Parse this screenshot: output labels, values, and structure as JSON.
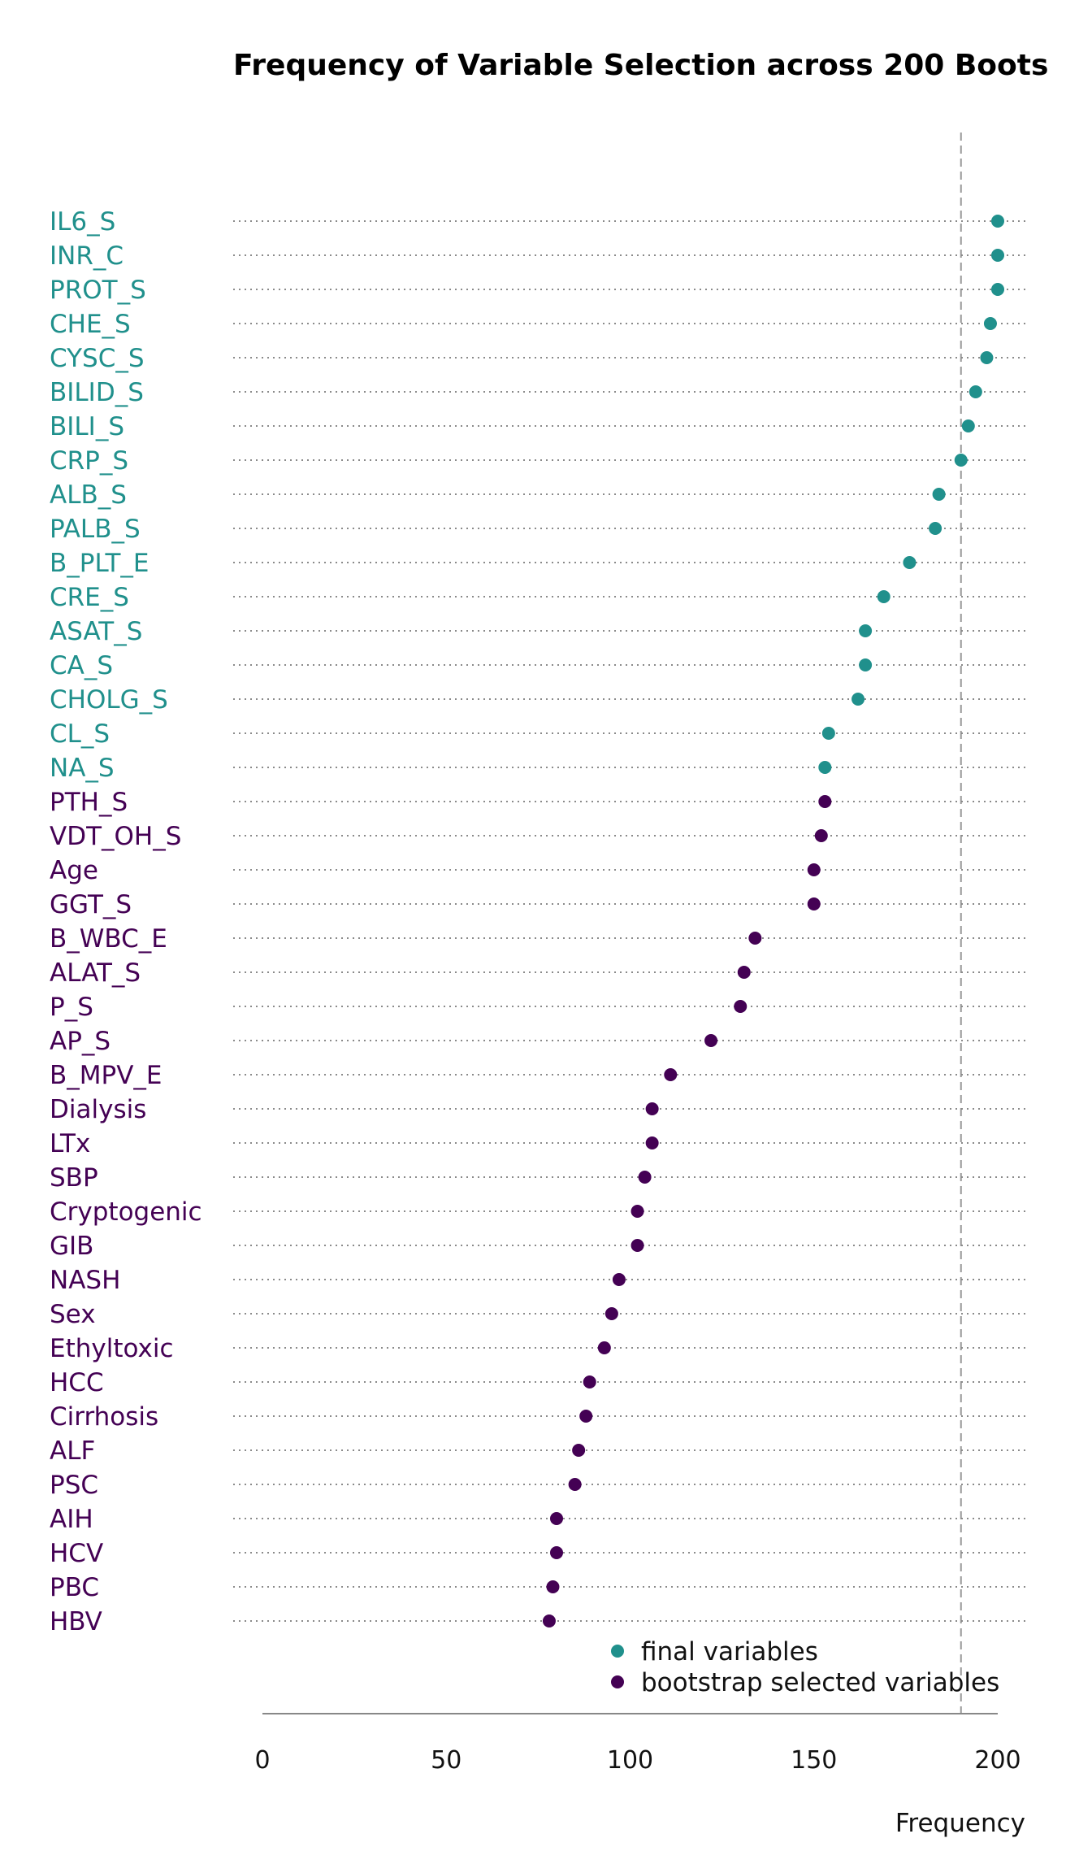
{
  "chart_data": {
    "type": "scatter",
    "title": "Frequency of Variable Selection across 200 Boots",
    "xlabel": "Frequency",
    "ylabel": "",
    "xlim": [
      0,
      200
    ],
    "xticks": [
      "0",
      "50",
      "100",
      "150",
      "200"
    ],
    "reference_line_x": 190,
    "grid": "dotted horizontal row lines",
    "legend_position": "bottom-center",
    "colors": {
      "final": "#20908c",
      "bootstrap": "#440154"
    },
    "legend": [
      {
        "key": "final",
        "label": "final variables"
      },
      {
        "key": "bootstrap",
        "label": "bootstrap selected variables"
      }
    ],
    "variables": [
      {
        "name": "IL6_S",
        "value": 200,
        "group": "final"
      },
      {
        "name": "INR_C",
        "value": 200,
        "group": "final"
      },
      {
        "name": "PROT_S",
        "value": 200,
        "group": "final"
      },
      {
        "name": "CHE_S",
        "value": 198,
        "group": "final"
      },
      {
        "name": "CYSC_S",
        "value": 197,
        "group": "final"
      },
      {
        "name": "BILID_S",
        "value": 194,
        "group": "final"
      },
      {
        "name": "BILI_S",
        "value": 192,
        "group": "final"
      },
      {
        "name": "CRP_S",
        "value": 190,
        "group": "final"
      },
      {
        "name": "ALB_S",
        "value": 184,
        "group": "final"
      },
      {
        "name": "PALB_S",
        "value": 183,
        "group": "final"
      },
      {
        "name": "B_PLT_E",
        "value": 176,
        "group": "final"
      },
      {
        "name": "CRE_S",
        "value": 169,
        "group": "final"
      },
      {
        "name": "ASAT_S",
        "value": 164,
        "group": "final"
      },
      {
        "name": "CA_S",
        "value": 164,
        "group": "final"
      },
      {
        "name": "CHOLG_S",
        "value": 162,
        "group": "final"
      },
      {
        "name": "CL_S",
        "value": 154,
        "group": "final"
      },
      {
        "name": "NA_S",
        "value": 153,
        "group": "final"
      },
      {
        "name": "PTH_S",
        "value": 153,
        "group": "bootstrap"
      },
      {
        "name": "VDT_OH_S",
        "value": 152,
        "group": "bootstrap"
      },
      {
        "name": "Age",
        "value": 150,
        "group": "bootstrap"
      },
      {
        "name": "GGT_S",
        "value": 150,
        "group": "bootstrap"
      },
      {
        "name": "B_WBC_E",
        "value": 134,
        "group": "bootstrap"
      },
      {
        "name": "ALAT_S",
        "value": 131,
        "group": "bootstrap"
      },
      {
        "name": "P_S",
        "value": 130,
        "group": "bootstrap"
      },
      {
        "name": "AP_S",
        "value": 122,
        "group": "bootstrap"
      },
      {
        "name": "B_MPV_E",
        "value": 111,
        "group": "bootstrap"
      },
      {
        "name": "Dialysis",
        "value": 106,
        "group": "bootstrap"
      },
      {
        "name": "LTx",
        "value": 106,
        "group": "bootstrap"
      },
      {
        "name": "SBP",
        "value": 104,
        "group": "bootstrap"
      },
      {
        "name": "Cryptogenic",
        "value": 102,
        "group": "bootstrap"
      },
      {
        "name": "GIB",
        "value": 102,
        "group": "bootstrap"
      },
      {
        "name": "NASH",
        "value": 97,
        "group": "bootstrap"
      },
      {
        "name": "Sex",
        "value": 95,
        "group": "bootstrap"
      },
      {
        "name": "Ethyltoxic",
        "value": 93,
        "group": "bootstrap"
      },
      {
        "name": "HCC",
        "value": 89,
        "group": "bootstrap"
      },
      {
        "name": "Cirrhosis",
        "value": 88,
        "group": "bootstrap"
      },
      {
        "name": "ALF",
        "value": 86,
        "group": "bootstrap"
      },
      {
        "name": "PSC",
        "value": 85,
        "group": "bootstrap"
      },
      {
        "name": "AIH",
        "value": 80,
        "group": "bootstrap"
      },
      {
        "name": "HCV",
        "value": 80,
        "group": "bootstrap"
      },
      {
        "name": "PBC",
        "value": 79,
        "group": "bootstrap"
      },
      {
        "name": "HBV",
        "value": 78,
        "group": "bootstrap"
      }
    ]
  }
}
